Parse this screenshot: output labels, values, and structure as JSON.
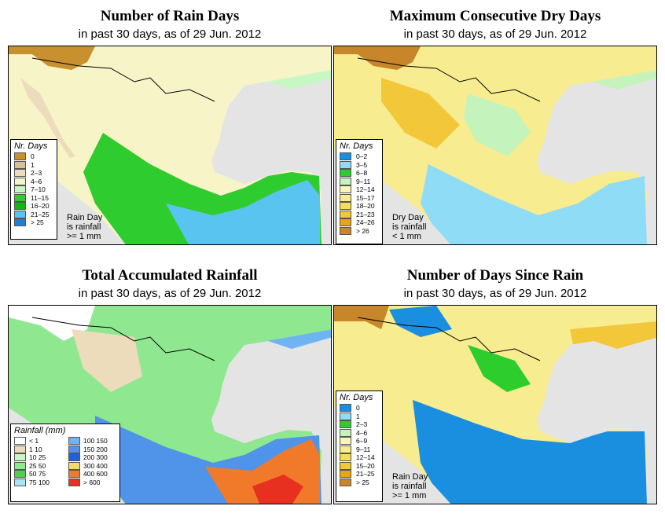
{
  "panels": [
    {
      "id": "rain-days",
      "title": "Number of Rain Days",
      "subtitle": "in past 30 days, as of  29 Jun. 2012",
      "legend_title": "Nr. Days",
      "legend": [
        {
          "label": "0",
          "color": "#c8902e"
        },
        {
          "label": "1",
          "color": "#d9bf96"
        },
        {
          "label": "2–3",
          "color": "#ecdcbc"
        },
        {
          "label": "4–6",
          "color": "#f7f4c8"
        },
        {
          "label": "7–10",
          "color": "#c7f7c2"
        },
        {
          "label": "11–15",
          "color": "#2fcc2f"
        },
        {
          "label": "16–20",
          "color": "#12b812"
        },
        {
          "label": "21–25",
          "color": "#59c4f0"
        },
        {
          "label": "> 25",
          "color": "#1f7fd0"
        }
      ],
      "note": [
        "Rain Day",
        "is rainfall",
        ">= 1 mm"
      ]
    },
    {
      "id": "dry-days",
      "title": "Maximum Consecutive Dry Days",
      "subtitle": "in past 30 days, as of  29 Jun. 2012",
      "legend_title": "Nr. Days",
      "legend": [
        {
          "label": "0–2",
          "color": "#1a8fe0"
        },
        {
          "label": "3–5",
          "color": "#8fdcf7"
        },
        {
          "label": "6–8",
          "color": "#2ccd2c"
        },
        {
          "label": "9–11",
          "color": "#c4f3bc"
        },
        {
          "label": "12–14",
          "color": "#f8f5b8"
        },
        {
          "label": "15–17",
          "color": "#f7ec8f"
        },
        {
          "label": "18–20",
          "color": "#f5df5a"
        },
        {
          "label": "21–23",
          "color": "#f2c73a"
        },
        {
          "label": "24–26",
          "color": "#e7a51a"
        },
        {
          "label": "> 26",
          "color": "#c8862a"
        }
      ],
      "note": [
        "Dry Day",
        "is rainfall",
        "< 1 mm"
      ]
    },
    {
      "id": "total-rain",
      "title": "Total Accumulated Rainfall",
      "subtitle": "in past 30 days, as of  29 Jun. 2012",
      "legend_title": "Rainfall (mm)",
      "legend": [
        {
          "label": "< 1",
          "color": "#ffffff"
        },
        {
          "label": "100  150",
          "color": "#6fb4f2"
        },
        {
          "label": "1    10",
          "color": "#ecdcbc"
        },
        {
          "label": "150  200",
          "color": "#4f94e8"
        },
        {
          "label": "10   25",
          "color": "#c7f7c2"
        },
        {
          "label": "200  300",
          "color": "#2060d8"
        },
        {
          "label": "25   50",
          "color": "#8fe88f"
        },
        {
          "label": "300  400",
          "color": "#f7d86a"
        },
        {
          "label": "50   75",
          "color": "#4cd24c"
        },
        {
          "label": "400  600",
          "color": "#f07a2a"
        },
        {
          "label": "75   100",
          "color": "#a8e6f7"
        },
        {
          "label": "> 600",
          "color": "#e83020"
        }
      ],
      "note": []
    },
    {
      "id": "since-rain",
      "title": "Number of Days Since Rain",
      "subtitle": "in past 30 days, as of  29 Jun. 2012",
      "legend_title": "Nr. Days",
      "legend": [
        {
          "label": "0",
          "color": "#1a8fe0"
        },
        {
          "label": "1",
          "color": "#8fdcf7"
        },
        {
          "label": "2–3",
          "color": "#2ccd2c"
        },
        {
          "label": "4–6",
          "color": "#c4f3bc"
        },
        {
          "label": "6–9",
          "color": "#f8f5b8"
        },
        {
          "label": "9–11",
          "color": "#f7ec8f"
        },
        {
          "label": "12–14",
          "color": "#f5df5a"
        },
        {
          "label": "15–20",
          "color": "#f2c73a"
        },
        {
          "label": "21–25",
          "color": "#e7a51a"
        },
        {
          "label": "> 25",
          "color": "#c8862a"
        }
      ],
      "note": [
        "Rain Day",
        "is rainfall",
        ">= 1 mm"
      ]
    }
  ]
}
